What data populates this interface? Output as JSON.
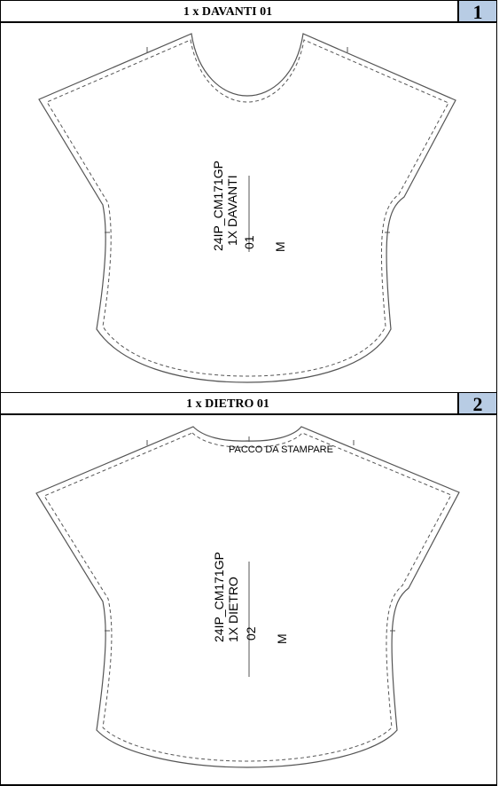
{
  "panels": [
    {
      "title": "1 x DAVANTI 01",
      "number": "1",
      "label_lines": [
        "24IP_CM171GP",
        "1X DAVANTI",
        "01"
      ],
      "size": "M"
    },
    {
      "title": "1 x DIETRO 01",
      "number": "2",
      "label_lines": [
        "24IP_CM171GP",
        "1X DIETRO",
        "02"
      ],
      "size": "M",
      "note": "PACCO DA STAMPARE"
    }
  ],
  "colors": {
    "number_badge": "#b8cce4",
    "outline": "#555555"
  }
}
